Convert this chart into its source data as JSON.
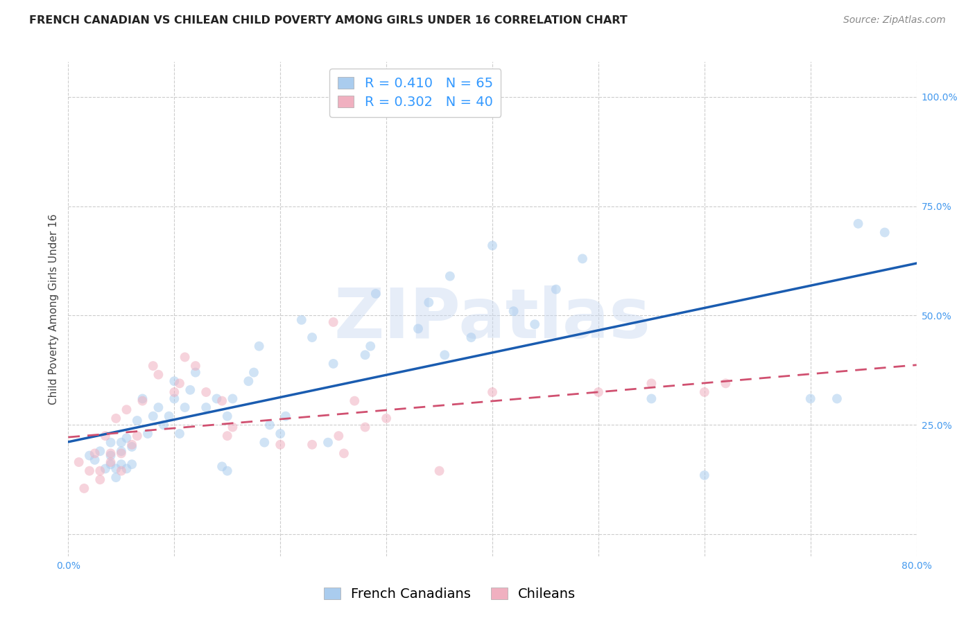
{
  "title": "FRENCH CANADIAN VS CHILEAN CHILD POVERTY AMONG GIRLS UNDER 16 CORRELATION CHART",
  "source": "Source: ZipAtlas.com",
  "ylabel": "Child Poverty Among Girls Under 16",
  "watermark": "ZIPatlas",
  "xlim": [
    0.0,
    0.8
  ],
  "ylim": [
    -0.05,
    1.08
  ],
  "xticks": [
    0.0,
    0.1,
    0.2,
    0.3,
    0.4,
    0.5,
    0.6,
    0.7,
    0.8
  ],
  "xticklabels": [
    "0.0%",
    "",
    "",
    "",
    "",
    "",
    "",
    "",
    "80.0%"
  ],
  "ytick_positions": [
    0.0,
    0.25,
    0.5,
    0.75,
    1.0
  ],
  "ytick_labels": [
    "",
    "25.0%",
    "50.0%",
    "75.0%",
    "100.0%"
  ],
  "french_R": 0.41,
  "french_N": 65,
  "chilean_R": 0.302,
  "chilean_N": 40,
  "french_color": "#aaccee",
  "chilean_color": "#f0b0c0",
  "french_line_color": "#1a5cb0",
  "chilean_line_color": "#d05070",
  "grid_color": "#cccccc",
  "tick_color": "#4499ee",
  "legend_label_french": "French Canadians",
  "legend_label_chilean": "Chileans",
  "french_x": [
    0.02,
    0.025,
    0.03,
    0.035,
    0.04,
    0.04,
    0.04,
    0.045,
    0.045,
    0.05,
    0.05,
    0.05,
    0.055,
    0.055,
    0.06,
    0.06,
    0.065,
    0.07,
    0.075,
    0.08,
    0.085,
    0.09,
    0.095,
    0.1,
    0.1,
    0.105,
    0.11,
    0.115,
    0.12,
    0.13,
    0.14,
    0.145,
    0.15,
    0.155,
    0.15,
    0.17,
    0.175,
    0.18,
    0.185,
    0.19,
    0.2,
    0.205,
    0.22,
    0.23,
    0.245,
    0.25,
    0.28,
    0.285,
    0.29,
    0.33,
    0.34,
    0.355,
    0.36,
    0.38,
    0.4,
    0.42,
    0.44,
    0.46,
    0.485,
    0.55,
    0.6,
    0.7,
    0.725,
    0.745,
    0.77
  ],
  "french_y": [
    0.18,
    0.17,
    0.19,
    0.15,
    0.16,
    0.18,
    0.21,
    0.13,
    0.15,
    0.16,
    0.19,
    0.21,
    0.22,
    0.15,
    0.16,
    0.2,
    0.26,
    0.31,
    0.23,
    0.27,
    0.29,
    0.25,
    0.27,
    0.31,
    0.35,
    0.23,
    0.29,
    0.33,
    0.37,
    0.29,
    0.31,
    0.155,
    0.27,
    0.31,
    0.145,
    0.35,
    0.37,
    0.43,
    0.21,
    0.25,
    0.23,
    0.27,
    0.49,
    0.45,
    0.21,
    0.39,
    0.41,
    0.43,
    0.55,
    0.47,
    0.53,
    0.41,
    0.59,
    0.45,
    0.66,
    0.51,
    0.48,
    0.56,
    0.63,
    0.31,
    0.135,
    0.31,
    0.31,
    0.71,
    0.69
  ],
  "chilean_x": [
    0.01,
    0.015,
    0.02,
    0.025,
    0.03,
    0.03,
    0.035,
    0.04,
    0.04,
    0.045,
    0.05,
    0.05,
    0.055,
    0.06,
    0.065,
    0.07,
    0.08,
    0.085,
    0.1,
    0.105,
    0.11,
    0.12,
    0.13,
    0.145,
    0.15,
    0.155,
    0.2,
    0.23,
    0.25,
    0.255,
    0.26,
    0.27,
    0.28,
    0.3,
    0.35,
    0.4,
    0.5,
    0.55,
    0.6,
    0.62
  ],
  "chilean_y": [
    0.165,
    0.105,
    0.145,
    0.185,
    0.125,
    0.145,
    0.225,
    0.165,
    0.185,
    0.265,
    0.145,
    0.185,
    0.285,
    0.205,
    0.225,
    0.305,
    0.385,
    0.365,
    0.325,
    0.345,
    0.405,
    0.385,
    0.325,
    0.305,
    0.225,
    0.245,
    0.205,
    0.205,
    0.485,
    0.225,
    0.185,
    0.305,
    0.245,
    0.265,
    0.145,
    0.325,
    0.325,
    0.345,
    0.325,
    0.345
  ],
  "marker_size": 100,
  "marker_alpha": 0.55,
  "title_fontsize": 11.5,
  "axis_label_fontsize": 11,
  "tick_fontsize": 10,
  "legend_fontsize": 14,
  "source_fontsize": 10
}
